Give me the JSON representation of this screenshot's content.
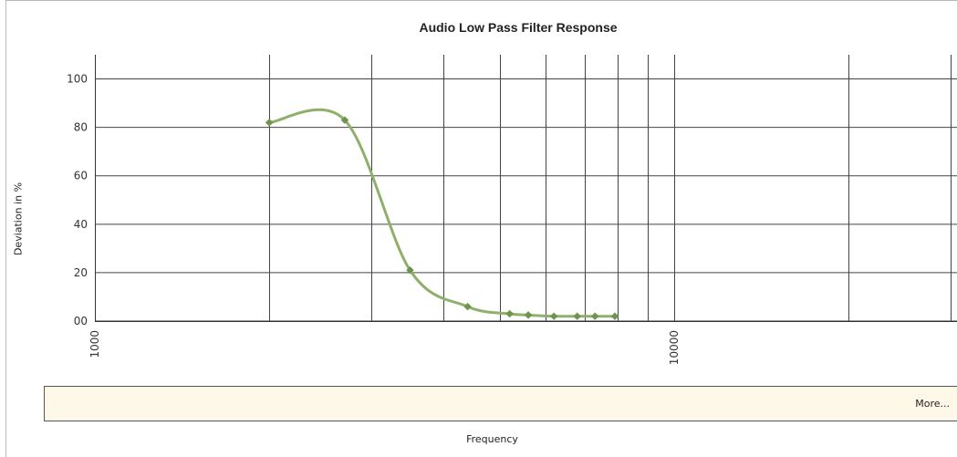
{
  "chart_data": {
    "type": "line",
    "title": "Audio Low Pass Filter Response",
    "xlabel": "Frequency",
    "ylabel": "Deviation in %",
    "x_scale": "log",
    "xlim": [
      1000,
      30000
    ],
    "ylim": [
      0,
      110
    ],
    "x_tick_labels": [
      "1000",
      "10000"
    ],
    "y_tick_labels": [
      "100",
      "80",
      "60",
      "40",
      "20",
      "00"
    ],
    "y_tick_values": [
      100,
      80,
      60,
      40,
      20,
      0
    ],
    "x_gridlines": [
      2000,
      3000,
      4000,
      5000,
      6000,
      7000,
      8000,
      9000,
      10000,
      20000,
      30000
    ],
    "grid": true,
    "series": [
      {
        "color": "#8fb06a",
        "points": [
          {
            "x": 2000,
            "y": 82
          },
          {
            "x": 2700,
            "y": 83
          },
          {
            "x": 3500,
            "y": 21
          },
          {
            "x": 4400,
            "y": 6
          },
          {
            "x": 5200,
            "y": 3
          },
          {
            "x": 5600,
            "y": 2.5
          },
          {
            "x": 6200,
            "y": 2
          },
          {
            "x": 6800,
            "y": 2
          },
          {
            "x": 7300,
            "y": 2
          },
          {
            "x": 7900,
            "y": 2
          }
        ]
      }
    ]
  },
  "footer": {
    "more_label": "More..."
  }
}
